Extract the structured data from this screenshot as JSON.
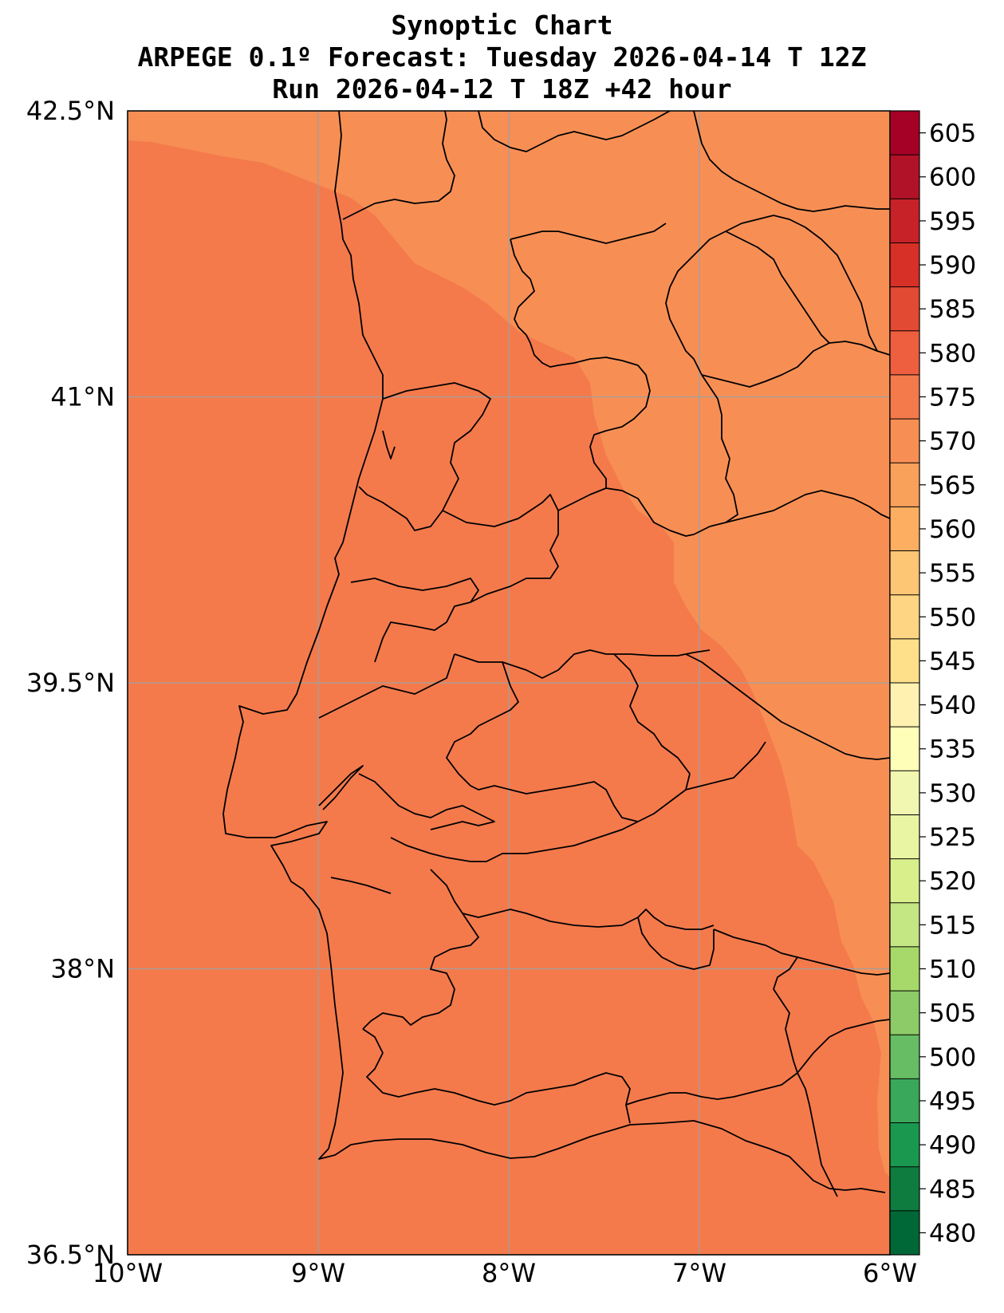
{
  "title": {
    "line1": "Synoptic Chart",
    "line2": "ARPEGE 0.1º Forecast: Tuesday 2026-04-14 T 12Z",
    "line3": "Run 2026-04-12 T 18Z +42 hour"
  },
  "map": {
    "lon_range": [
      -10,
      -6
    ],
    "lat_range": [
      36.5,
      42.5
    ],
    "lon_ticks": [
      {
        "value": -10,
        "label": "10°W"
      },
      {
        "value": -9,
        "label": "9°W"
      },
      {
        "value": -8,
        "label": "8°W"
      },
      {
        "value": -7,
        "label": "7°W"
      },
      {
        "value": -6,
        "label": "6°W"
      }
    ],
    "lat_ticks": [
      {
        "value": 42.5,
        "label": "42.5°N"
      },
      {
        "value": 41,
        "label": "41°N"
      },
      {
        "value": 39.5,
        "label": "39.5°N"
      },
      {
        "value": 38,
        "label": "38°N"
      },
      {
        "value": 36.5,
        "label": "36.5°N"
      }
    ],
    "grid": true,
    "field_colors": {
      "band_575_580": "#f47a4c",
      "band_570_575": "#f78f55"
    }
  },
  "colorbar": {
    "levels": [
      480,
      485,
      490,
      495,
      500,
      505,
      510,
      515,
      520,
      525,
      530,
      535,
      540,
      545,
      550,
      555,
      560,
      565,
      570,
      575,
      580,
      585,
      590,
      595,
      600,
      605
    ],
    "labels": [
      "480",
      "485",
      "490",
      "495",
      "500",
      "505",
      "510",
      "515",
      "520",
      "525",
      "530",
      "535",
      "540",
      "545",
      "550",
      "555",
      "560",
      "565",
      "570",
      "575",
      "580",
      "585",
      "590",
      "595",
      "600",
      "605"
    ],
    "colors": [
      "#006837",
      "#0e7b3f",
      "#1a9850",
      "#3aa85a",
      "#66bd63",
      "#8ccb67",
      "#a6d96a",
      "#c4e683",
      "#d9ef8b",
      "#e9f5a3",
      "#f1f7b0",
      "#fefeb8",
      "#fff2b0",
      "#fee08b",
      "#fed582",
      "#fdc675",
      "#fdae61",
      "#f9a05b",
      "#f78f55",
      "#f47a4c",
      "#ed5f3f",
      "#e34a33",
      "#d73027",
      "#c62228",
      "#b21228",
      "#a50026"
    ]
  }
}
